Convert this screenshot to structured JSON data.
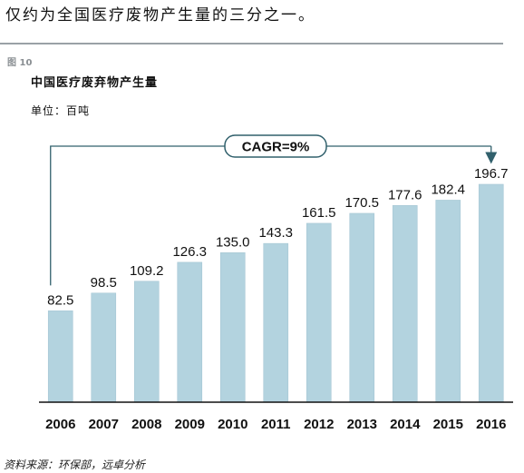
{
  "intro_text": "仅约为全国医疗废物产生量的三分之一。",
  "figure_label": "图 10",
  "source": "资料来源：环保部，远卓分析",
  "chart_data": {
    "type": "bar",
    "title": "中国医疗废弃物产生量",
    "unit": "单位：百吨",
    "categories": [
      "2006",
      "2007",
      "2008",
      "2009",
      "2010",
      "2011",
      "2012",
      "2013",
      "2014",
      "2015",
      "2016"
    ],
    "values": [
      82.5,
      98.5,
      109.2,
      126.3,
      135.0,
      143.3,
      161.5,
      170.5,
      177.6,
      182.4,
      196.7
    ],
    "value_labels": [
      "82.5",
      "98.5",
      "109.2",
      "126.3",
      "135.0",
      "143.3",
      "161.5",
      "170.5",
      "177.6",
      "182.4",
      "196.7"
    ],
    "annotation": "CAGR=9%",
    "colors": {
      "bar": "#b3d3df",
      "bar_edge": "#a7c7d4",
      "annotation": "#31606c"
    },
    "ylim": [
      0,
      196.7
    ],
    "grid": false,
    "legend": false
  }
}
